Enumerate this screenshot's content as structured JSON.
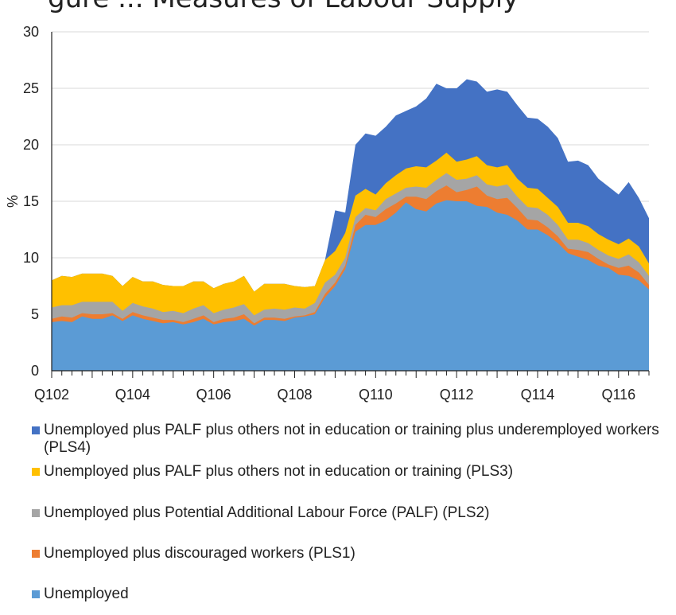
{
  "title_fragment": "gure ... Measures of Labour Supply",
  "chart_data": {
    "type": "area",
    "stacked": false,
    "title": "",
    "xlabel": "",
    "ylabel": "%",
    "ylim": [
      0,
      30
    ],
    "yticks": [
      0,
      5,
      10,
      15,
      20,
      25,
      30
    ],
    "xtick_labels": [
      "Q102",
      "Q104",
      "Q106",
      "Q108",
      "Q110",
      "Q112",
      "Q114",
      "Q116"
    ],
    "x": [
      "Q102",
      "Q202",
      "Q302",
      "Q402",
      "Q103",
      "Q203",
      "Q303",
      "Q403",
      "Q104",
      "Q204",
      "Q304",
      "Q404",
      "Q105",
      "Q205",
      "Q305",
      "Q405",
      "Q106",
      "Q206",
      "Q306",
      "Q406",
      "Q107",
      "Q207",
      "Q307",
      "Q407",
      "Q108",
      "Q208",
      "Q308",
      "Q408",
      "Q109",
      "Q209",
      "Q309",
      "Q409",
      "Q110",
      "Q210",
      "Q310",
      "Q410",
      "Q111",
      "Q211",
      "Q311",
      "Q411",
      "Q112",
      "Q212",
      "Q312",
      "Q412",
      "Q113",
      "Q213",
      "Q313",
      "Q413",
      "Q114",
      "Q214",
      "Q314",
      "Q414",
      "Q115",
      "Q215",
      "Q315",
      "Q415",
      "Q116",
      "Q216",
      "Q316",
      "Q416"
    ],
    "series": [
      {
        "name": "Unemployed plus PALF plus others not in education or training plus underemployed workers (PLS4)",
        "color": "#4472c4",
        "values": [
          8.0,
          8.4,
          8.3,
          8.6,
          8.6,
          8.6,
          8.4,
          7.5,
          8.3,
          7.9,
          7.9,
          7.6,
          7.5,
          7.5,
          7.9,
          7.9,
          7.3,
          7.7,
          7.9,
          8.4,
          7.0,
          7.7,
          7.7,
          7.7,
          7.5,
          7.4,
          7.5,
          9.8,
          14.2,
          14.0,
          20.0,
          21.0,
          20.8,
          21.6,
          22.6,
          23.0,
          23.4,
          24.1,
          25.4,
          25.0,
          25.0,
          25.8,
          25.6,
          24.7,
          24.9,
          24.7,
          23.5,
          22.4,
          22.3,
          21.6,
          20.6,
          18.5,
          18.6,
          18.2,
          17.0,
          16.3,
          15.6,
          16.7,
          15.3,
          13.5
        ]
      },
      {
        "name": "Unemployed plus PALF plus others not in education or training (PLS3)",
        "color": "#ffc000",
        "values": [
          8.0,
          8.4,
          8.3,
          8.6,
          8.6,
          8.6,
          8.4,
          7.5,
          8.3,
          7.9,
          7.9,
          7.6,
          7.5,
          7.5,
          7.9,
          7.9,
          7.3,
          7.7,
          7.9,
          8.4,
          7.0,
          7.7,
          7.7,
          7.7,
          7.5,
          7.4,
          7.5,
          9.8,
          10.6,
          12.2,
          15.5,
          16.1,
          15.6,
          16.6,
          17.3,
          17.9,
          18.1,
          18.0,
          18.6,
          19.3,
          18.5,
          18.7,
          19.0,
          18.2,
          18.0,
          18.2,
          17.0,
          16.2,
          16.1,
          15.3,
          14.5,
          13.1,
          13.1,
          12.8,
          12.1,
          11.6,
          11.2,
          11.7,
          11.0,
          9.5
        ]
      },
      {
        "name": "Unemployed plus Potential Additional Labour Force (PALF) (PLS2)",
        "color": "#a5a5a5",
        "values": [
          5.6,
          5.8,
          5.8,
          6.1,
          6.1,
          6.1,
          6.1,
          5.3,
          6.0,
          5.7,
          5.5,
          5.2,
          5.3,
          5.1,
          5.5,
          5.8,
          5.1,
          5.4,
          5.6,
          5.9,
          4.9,
          5.4,
          5.5,
          5.4,
          5.6,
          5.5,
          6.0,
          7.8,
          8.5,
          10.0,
          13.6,
          14.4,
          14.2,
          15.2,
          15.7,
          16.2,
          16.3,
          16.2,
          16.9,
          17.5,
          16.9,
          17.0,
          17.3,
          16.5,
          16.3,
          16.5,
          15.4,
          14.5,
          14.4,
          13.8,
          12.9,
          11.6,
          11.6,
          11.3,
          10.7,
          10.2,
          9.9,
          10.3,
          9.6,
          8.4
        ]
      },
      {
        "name": "Unemployed plus discouraged workers (PLS1)",
        "color": "#ed7d31",
        "values": [
          4.6,
          4.8,
          4.7,
          5.1,
          5.0,
          5.0,
          5.1,
          4.6,
          5.2,
          4.9,
          4.7,
          4.5,
          4.5,
          4.3,
          4.6,
          4.9,
          4.3,
          4.6,
          4.7,
          5.0,
          4.2,
          4.7,
          4.7,
          4.6,
          4.8,
          4.9,
          5.2,
          6.8,
          7.8,
          9.3,
          12.9,
          13.8,
          13.6,
          14.3,
          14.8,
          15.4,
          15.4,
          15.2,
          15.9,
          16.4,
          15.8,
          16.0,
          16.3,
          15.5,
          15.2,
          15.3,
          14.4,
          13.4,
          13.3,
          12.7,
          11.9,
          10.8,
          10.7,
          10.5,
          9.9,
          9.4,
          9.1,
          9.3,
          8.7,
          7.6
        ]
      },
      {
        "name": "Unemployed",
        "color": "#5b9bd5",
        "values": [
          4.3,
          4.4,
          4.3,
          4.8,
          4.6,
          4.6,
          4.9,
          4.4,
          4.9,
          4.6,
          4.4,
          4.2,
          4.3,
          4.1,
          4.3,
          4.6,
          4.1,
          4.3,
          4.4,
          4.6,
          4.0,
          4.5,
          4.5,
          4.4,
          4.7,
          4.8,
          5.0,
          6.5,
          7.5,
          9.0,
          12.3,
          12.9,
          12.9,
          13.3,
          14.0,
          14.9,
          14.3,
          14.1,
          14.8,
          15.1,
          15.0,
          15.0,
          14.6,
          14.5,
          14.0,
          13.8,
          13.3,
          12.5,
          12.5,
          12.0,
          11.3,
          10.4,
          10.1,
          9.8,
          9.3,
          9.1,
          8.5,
          8.4,
          8.0,
          7.2
        ]
      }
    ],
    "legend": [
      {
        "label": "Unemployed plus PALF plus others not in education or training plus underemployed workers (PLS4)",
        "color": "#4472c4"
      },
      {
        "label": "Unemployed plus PALF plus others not in education or training (PLS3)",
        "color": "#ffc000"
      },
      {
        "label": "Unemployed plus Potential Additional Labour Force (PALF) (PLS2)",
        "color": "#a5a5a5"
      },
      {
        "label": "Unemployed plus discouraged workers (PLS1)",
        "color": "#ed7d31"
      },
      {
        "label": "Unemployed",
        "color": "#5b9bd5"
      }
    ],
    "legend_position": "bottom",
    "grid": true
  }
}
